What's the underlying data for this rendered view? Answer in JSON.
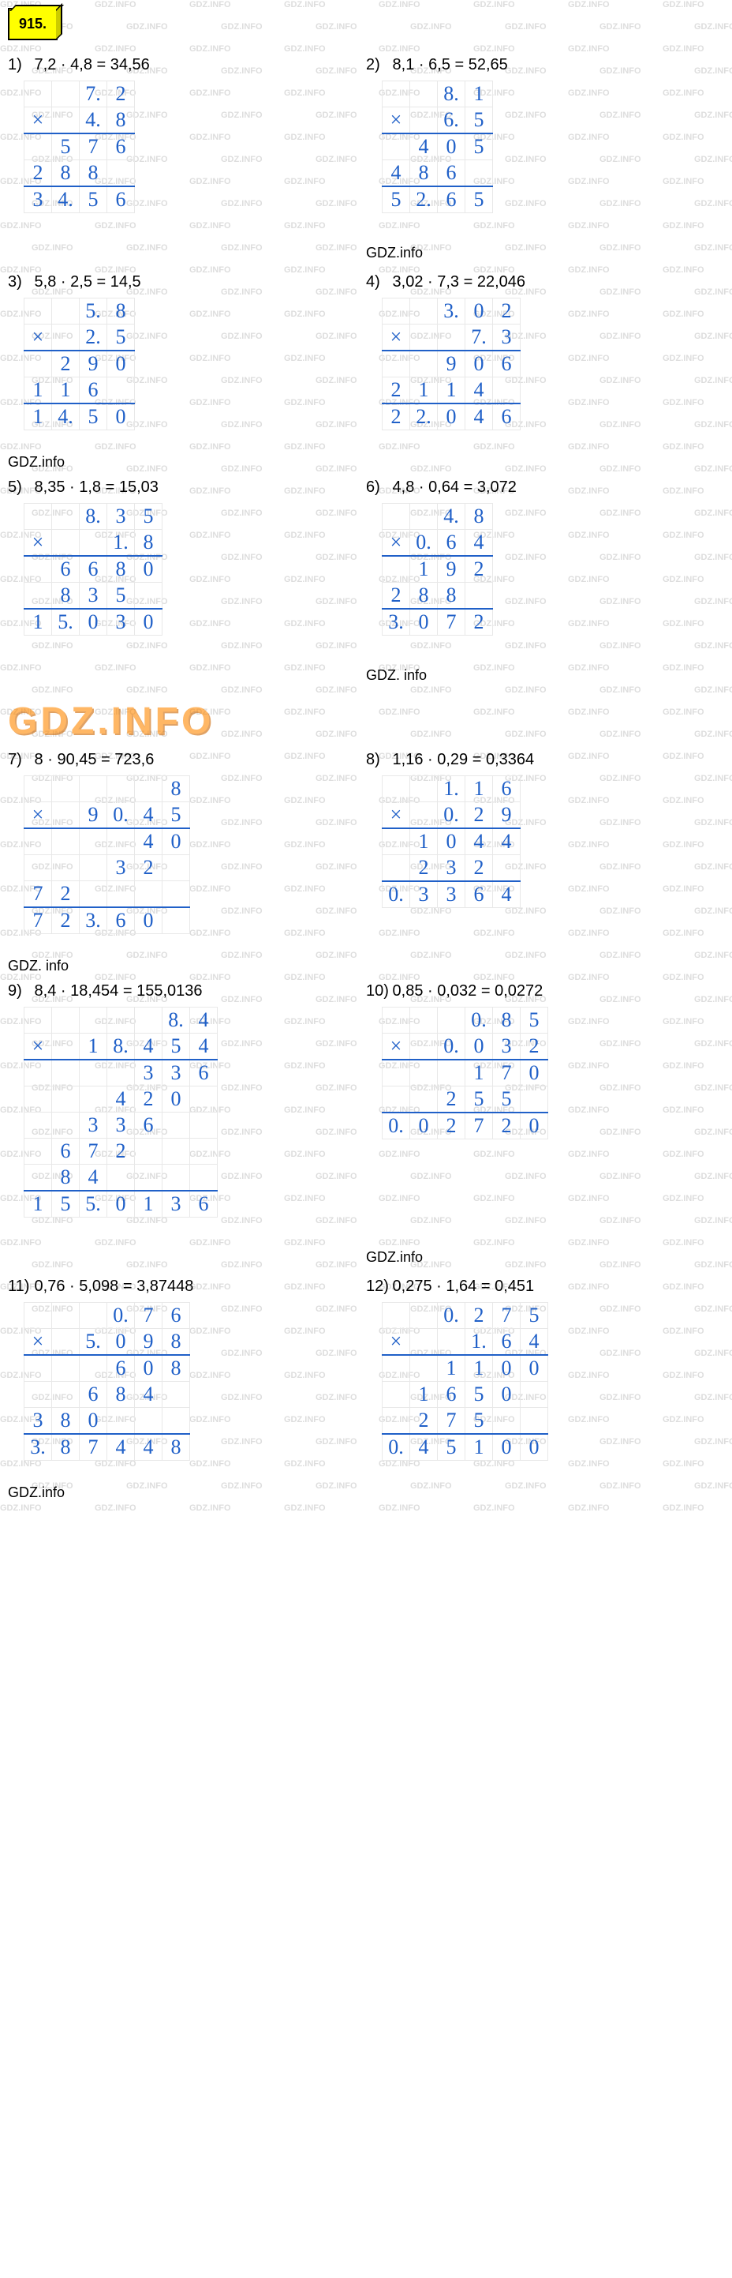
{
  "badge": "915.",
  "watermark_text": "GDZ.INFO",
  "watermark_color": "#dddddd",
  "section_labels": [
    "GDZ.info",
    "GDZ.info",
    "GDZ. info",
    "GDZ. info",
    "GDZ.info",
    "GDZ.info",
    "GDZ.info"
  ],
  "logo_text": "GDZ.INFO",
  "style": {
    "digit_color": "#2060c8",
    "grid_color": "#e8e8e8",
    "underline_color": "#2060c8",
    "digit_fontsize": 26,
    "equation_fontsize": 20,
    "badge_bg": "#ffff00",
    "badge_border": "#000000"
  },
  "problems": [
    {
      "n": "1)",
      "eq": "7,2 · 4,8 = 34,56",
      "rows": [
        [
          "",
          "",
          "7.",
          "2"
        ],
        [
          "×",
          "",
          "4.",
          "8"
        ],
        [
          "",
          "5",
          "7",
          "6"
        ],
        [
          "2",
          "8",
          "8",
          ""
        ],
        [
          "3",
          "4.",
          "5",
          "6"
        ]
      ],
      "ulines": [
        1,
        3
      ]
    },
    {
      "n": "2)",
      "eq": "8,1 · 6,5 = 52,65",
      "rows": [
        [
          "",
          "",
          "8.",
          "1"
        ],
        [
          "×",
          "",
          "6.",
          "5"
        ],
        [
          "",
          "4",
          "0",
          "5"
        ],
        [
          "4",
          "8",
          "6",
          ""
        ],
        [
          "5",
          "2.",
          "6",
          "5"
        ]
      ],
      "ulines": [
        1,
        3
      ]
    },
    {
      "n": "3)",
      "eq": "5,8 · 2,5 = 14,5",
      "rows": [
        [
          "",
          "",
          "5.",
          "8"
        ],
        [
          "×",
          "",
          "2.",
          "5"
        ],
        [
          "",
          "2",
          "9",
          "0"
        ],
        [
          "1",
          "1",
          "6",
          ""
        ],
        [
          "1",
          "4.",
          "5",
          "0"
        ]
      ],
      "ulines": [
        1,
        3
      ]
    },
    {
      "n": "4)",
      "eq": "3,02 · 7,3 = 22,046",
      "rows": [
        [
          "",
          "",
          "3.",
          "0",
          "2"
        ],
        [
          "×",
          "",
          "",
          "7.",
          "3"
        ],
        [
          "",
          "",
          "9",
          "0",
          "6"
        ],
        [
          "2",
          "1",
          "1",
          "4",
          ""
        ],
        [
          "2",
          "2.",
          "0",
          "4",
          "6"
        ]
      ],
      "ulines": [
        1,
        3
      ]
    },
    {
      "n": "5)",
      "eq": "8,35 · 1,8 = 15,03",
      "rows": [
        [
          "",
          "",
          "8.",
          "3",
          "5"
        ],
        [
          "×",
          "",
          "",
          "1.",
          "8"
        ],
        [
          "",
          "6",
          "6",
          "8",
          "0"
        ],
        [
          "",
          "8",
          "3",
          "5",
          ""
        ],
        [
          "1",
          "5.",
          "0",
          "3",
          "0"
        ]
      ],
      "ulines": [
        1,
        3
      ]
    },
    {
      "n": "6)",
      "eq": "4,8 · 0,64 = 3,072",
      "rows": [
        [
          "",
          "",
          "4.",
          "8"
        ],
        [
          "×",
          "0.",
          "6",
          "4"
        ],
        [
          "",
          "1",
          "9",
          "2"
        ],
        [
          "2",
          "8",
          "8",
          ""
        ],
        [
          "3.",
          "0",
          "7",
          "2"
        ]
      ],
      "ulines": [
        1,
        3
      ]
    },
    {
      "n": "7)",
      "eq": "8 · 90,45 = 723,6",
      "rows": [
        [
          "",
          "",
          "",
          "",
          "",
          "8"
        ],
        [
          "×",
          "",
          "9",
          "0.",
          "4",
          "5"
        ],
        [
          "",
          "",
          "",
          "",
          "4",
          "0"
        ],
        [
          "",
          "",
          "",
          "3",
          "2",
          ""
        ],
        [
          "7",
          "2",
          "",
          "",
          "",
          ""
        ],
        [
          "7",
          "2",
          "3.",
          "6",
          "0",
          ""
        ]
      ],
      "ulines": [
        1,
        4
      ]
    },
    {
      "n": "8)",
      "eq": "1,16 · 0,29 = 0,3364",
      "rows": [
        [
          "",
          "",
          "1.",
          "1",
          "6"
        ],
        [
          "×",
          "",
          "0.",
          "2",
          "9"
        ],
        [
          "",
          "1",
          "0",
          "4",
          "4"
        ],
        [
          "",
          "2",
          "3",
          "2",
          ""
        ],
        [
          "0.",
          "3",
          "3",
          "6",
          "4"
        ]
      ],
      "ulines": [
        1,
        3
      ]
    },
    {
      "n": "9)",
      "eq": "8,4 · 18,454 = 155,0136",
      "rows": [
        [
          "",
          "",
          "",
          "",
          "",
          "8.",
          "4"
        ],
        [
          "×",
          "",
          "1",
          "8.",
          "4",
          "5",
          "4"
        ],
        [
          "",
          "",
          "",
          "",
          "3",
          "3",
          "6"
        ],
        [
          "",
          "",
          "",
          "4",
          "2",
          "0",
          ""
        ],
        [
          "",
          "",
          "3",
          "3",
          "6",
          "",
          ""
        ],
        [
          "",
          "6",
          "7",
          "2",
          "",
          "",
          ""
        ],
        [
          "",
          "8",
          "4",
          "",
          "",
          "",
          ""
        ],
        [
          "1",
          "5",
          "5.",
          "0",
          "1",
          "3",
          "6"
        ]
      ],
      "ulines": [
        1,
        6
      ]
    },
    {
      "n": "10)",
      "eq": "0,85 · 0,032 = 0,0272",
      "rows": [
        [
          "",
          "",
          "",
          "0.",
          "8",
          "5"
        ],
        [
          "×",
          "",
          "0.",
          "0",
          "3",
          "2"
        ],
        [
          "",
          "",
          "",
          "1",
          "7",
          "0"
        ],
        [
          "",
          "",
          "2",
          "5",
          "5",
          ""
        ],
        [
          "0.",
          "0",
          "2",
          "7",
          "2",
          "0"
        ]
      ],
      "ulines": [
        1,
        3
      ]
    },
    {
      "n": "11)",
      "eq": "0,76 · 5,098 = 3,87448",
      "rows": [
        [
          "",
          "",
          "",
          "0.",
          "7",
          "6"
        ],
        [
          "×",
          "",
          "5.",
          "0",
          "9",
          "8"
        ],
        [
          "",
          "",
          "",
          "6",
          "0",
          "8"
        ],
        [
          "",
          "",
          "6",
          "8",
          "4",
          ""
        ],
        [
          "3",
          "8",
          "0",
          "",
          "",
          ""
        ],
        [
          "3.",
          "8",
          "7",
          "4",
          "4",
          "8"
        ]
      ],
      "ulines": [
        1,
        4
      ]
    },
    {
      "n": "12)",
      "eq": "0,275 · 1,64 = 0,451",
      "rows": [
        [
          "",
          "",
          "0.",
          "2",
          "7",
          "5"
        ],
        [
          "×",
          "",
          "",
          "1.",
          "6",
          "4"
        ],
        [
          "",
          "",
          "1",
          "1",
          "0",
          "0"
        ],
        [
          "",
          "1",
          "6",
          "5",
          "0",
          ""
        ],
        [
          "",
          "2",
          "7",
          "5",
          "",
          ""
        ],
        [
          "0.",
          "4",
          "5",
          "1",
          "0",
          "0"
        ]
      ],
      "ulines": [
        1,
        4
      ]
    }
  ]
}
